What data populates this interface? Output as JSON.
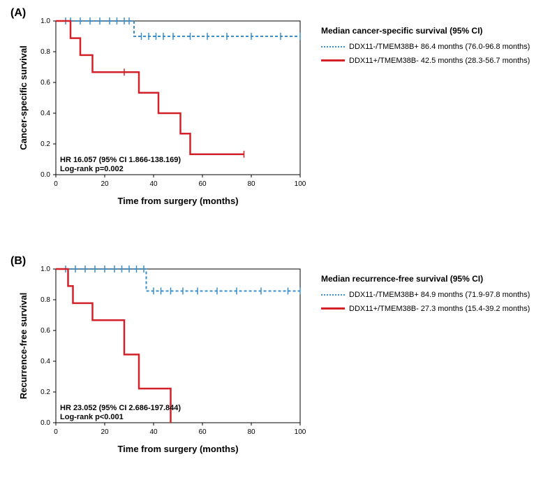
{
  "colors": {
    "blue": "#3a8ecb",
    "red": "#d22128",
    "axis": "#000000",
    "bg": "#ffffff"
  },
  "panel_a": {
    "label": "(A)",
    "x_label": "Time from surgery (months)",
    "y_label": "Cancer-specific survival",
    "legend_title": "Median cancer-specific survival (95% CI)",
    "legend_blue": "DDX11-/TMEM38B+ 86.4 months (76.0-96.8 months)",
    "legend_red": "DDX11+/TMEM38B- 42.5 months (28.3-56.7 months)",
    "hr_line": "HR 16.057 (95% CI 1.866-138.169)",
    "logrank_line": "Log-rank p=0.002",
    "x_ticks": [
      0,
      20,
      40,
      60,
      80,
      100
    ],
    "y_ticks": [
      0.0,
      0.2,
      0.4,
      0.6,
      0.8,
      1.0
    ],
    "xlim": [
      0,
      100
    ],
    "ylim": [
      0.0,
      1.0
    ],
    "series_blue": {
      "type": "step",
      "dash": "4,3",
      "width": 2,
      "points": [
        [
          0,
          1.0
        ],
        [
          32,
          1.0
        ],
        [
          32,
          0.9
        ],
        [
          100,
          0.9
        ]
      ],
      "censor": [
        4,
        6,
        10,
        14,
        18,
        22,
        25,
        28,
        30,
        35,
        38,
        41,
        44,
        48,
        55,
        62,
        70,
        80,
        92,
        100
      ]
    },
    "series_red": {
      "type": "step",
      "dash": "",
      "width": 2.5,
      "points": [
        [
          0,
          1.0
        ],
        [
          6,
          1.0
        ],
        [
          6,
          0.888
        ],
        [
          10,
          0.888
        ],
        [
          10,
          0.778
        ],
        [
          15,
          0.778
        ],
        [
          15,
          0.667
        ],
        [
          34,
          0.667
        ],
        [
          34,
          0.533
        ],
        [
          42,
          0.533
        ],
        [
          42,
          0.4
        ],
        [
          51,
          0.4
        ],
        [
          51,
          0.267
        ],
        [
          55,
          0.267
        ],
        [
          55,
          0.133
        ],
        [
          77,
          0.133
        ]
      ],
      "censor": [
        28,
        77
      ]
    }
  },
  "panel_b": {
    "label": "(B)",
    "x_label": "Time from surgery (months)",
    "y_label": "Recurrence-free survival",
    "legend_title": "Median recurrence-free survival (95% CI)",
    "legend_blue": "DDX11-/TMEM38B+ 84.9 months (71.9-97.8 months)",
    "legend_red": "DDX11+/TMEM38B- 27.3 months (15.4-39.2 months)",
    "hr_line": "HR 23.052 (95% CI 2.686-197.844)",
    "logrank_line": "Log-rank p<0.001",
    "x_ticks": [
      0,
      20,
      40,
      60,
      80,
      100
    ],
    "y_ticks": [
      0.0,
      0.2,
      0.4,
      0.6,
      0.8,
      1.0
    ],
    "xlim": [
      0,
      100
    ],
    "ylim": [
      0.0,
      1.0
    ],
    "series_blue": {
      "type": "step",
      "dash": "4,3",
      "width": 2,
      "points": [
        [
          0,
          1.0
        ],
        [
          37,
          1.0
        ],
        [
          37,
          0.857
        ],
        [
          100,
          0.857
        ]
      ],
      "censor": [
        4,
        8,
        12,
        16,
        20,
        24,
        27,
        30,
        33,
        36,
        40,
        43,
        47,
        52,
        58,
        66,
        74,
        84,
        95,
        100
      ]
    },
    "series_red": {
      "type": "step",
      "dash": "",
      "width": 2.5,
      "points": [
        [
          0,
          1.0
        ],
        [
          5,
          1.0
        ],
        [
          5,
          0.889
        ],
        [
          7,
          0.889
        ],
        [
          7,
          0.778
        ],
        [
          15,
          0.778
        ],
        [
          15,
          0.667
        ],
        [
          28,
          0.667
        ],
        [
          28,
          0.444
        ],
        [
          34,
          0.444
        ],
        [
          34,
          0.222
        ],
        [
          47,
          0.222
        ],
        [
          47,
          0.0
        ]
      ],
      "censor": []
    }
  }
}
